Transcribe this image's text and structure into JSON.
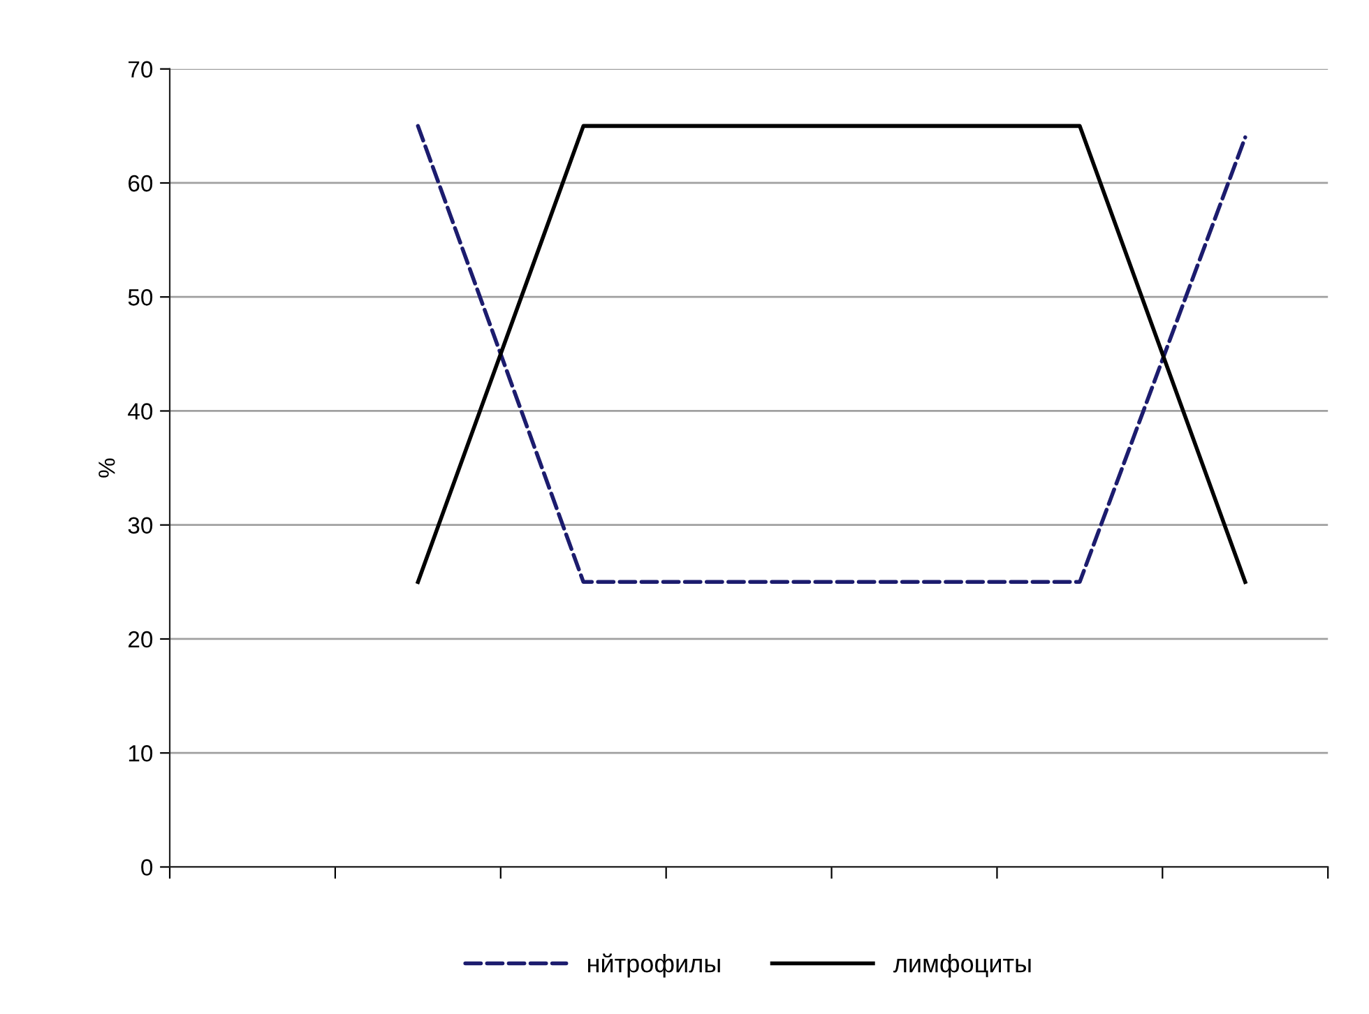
{
  "chart_data": {
    "type": "line",
    "ylabel": "%",
    "categories": [
      null,
      null,
      null,
      null,
      null,
      null,
      null
    ],
    "series": [
      {
        "name": "нйтрофилы",
        "color": "#1c1c6e",
        "line_style": "dashed",
        "values": [
          null,
          65,
          25,
          25,
          25,
          25,
          64
        ]
      },
      {
        "name": "лимфоциты",
        "color": "#000000",
        "line_style": "solid",
        "values": [
          null,
          25,
          65,
          65,
          65,
          65,
          25
        ]
      }
    ],
    "ylim": [
      0,
      70
    ],
    "yticks": [
      0,
      10,
      20,
      30,
      40,
      50,
      60,
      70
    ],
    "grid": "y",
    "legend": "bottom",
    "marker": "none"
  }
}
